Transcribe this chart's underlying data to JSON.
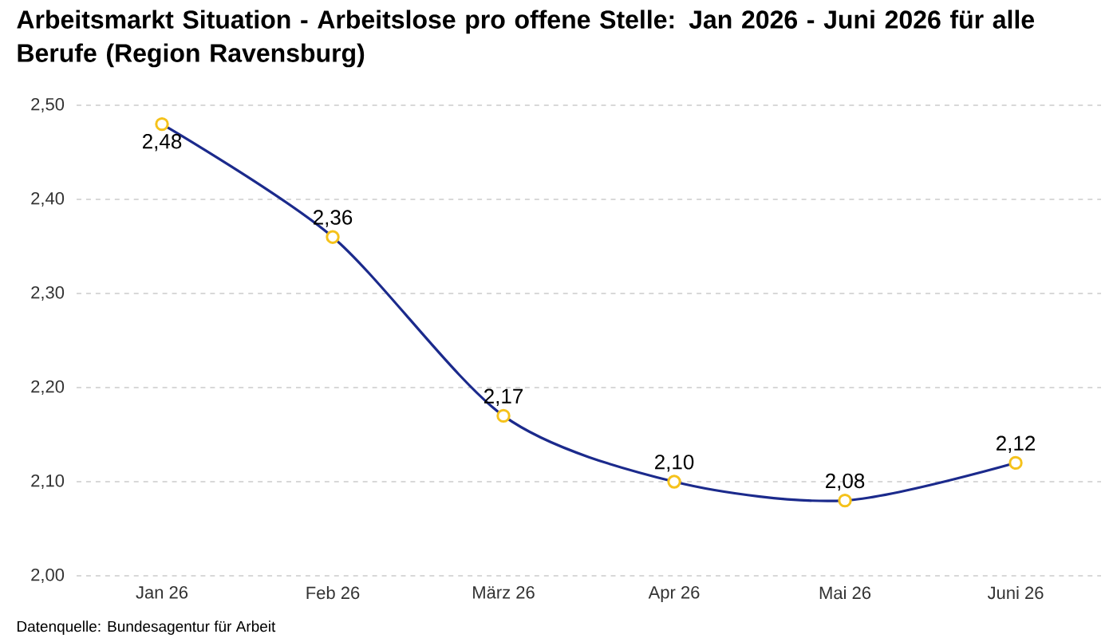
{
  "chart_data": {
    "type": "line",
    "title": "Arbeitsmarkt Situation - Arbeitslose pro offene Stelle: Jan 2026 - Juni 2026 für alle Berufe (Region Ravensburg)",
    "categories": [
      "Jan 26",
      "Feb 26",
      "März 26",
      "Apr 26",
      "Mai 26",
      "Juni 26"
    ],
    "series": [
      {
        "color": "#1b2a8c",
        "values": [
          2.48,
          2.36,
          2.17,
          2.1,
          2.08,
          2.12
        ],
        "value_labels": [
          "2,48",
          "2,36",
          "2,17",
          "2,10",
          "2,08",
          "2,12"
        ]
      }
    ],
    "ylim": [
      2.0,
      2.5
    ],
    "yticks": [
      {
        "value": 2.0,
        "label": "2,00"
      },
      {
        "value": 2.1,
        "label": "2,10"
      },
      {
        "value": 2.2,
        "label": "2,20"
      },
      {
        "value": 2.3,
        "label": "2,30"
      },
      {
        "value": 2.4,
        "label": "2,40"
      },
      {
        "value": 2.5,
        "label": "2,50"
      }
    ],
    "grid": "y",
    "marker": "circle",
    "line_style": "solid",
    "annotations": [
      "Datenquelle: Bundesagentur für Arbeit"
    ]
  }
}
